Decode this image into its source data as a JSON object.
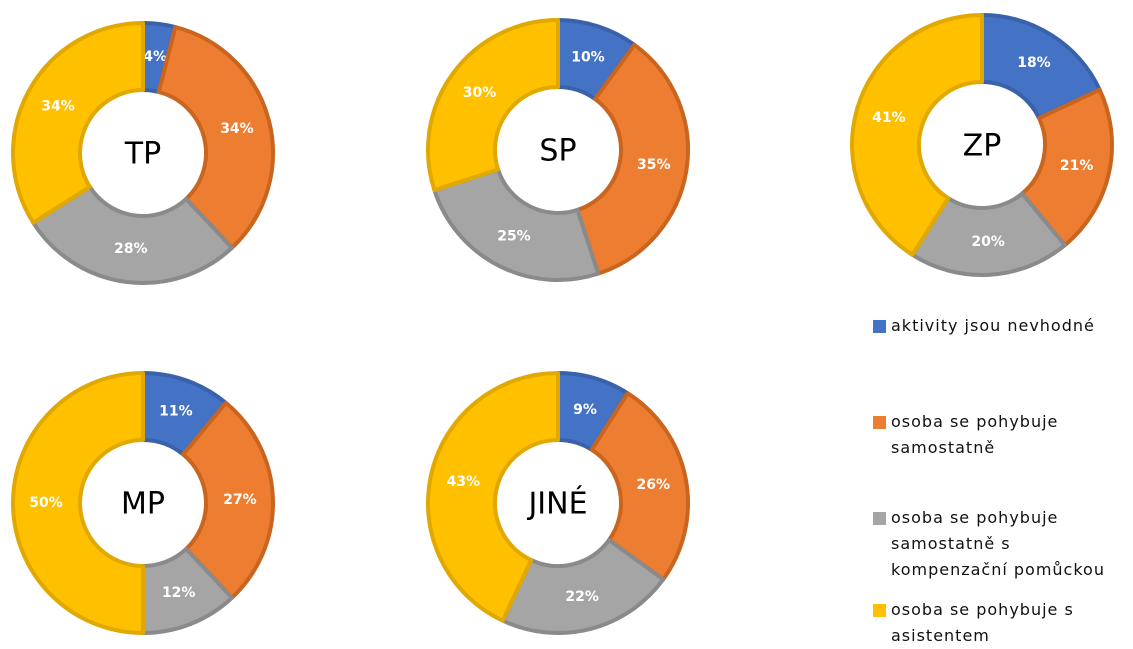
{
  "chart_data": [
    {
      "type": "pie",
      "title": "TP",
      "values": [
        4,
        34,
        28,
        34
      ],
      "value_labels": [
        "4%",
        "34%",
        "28%",
        "34%"
      ]
    },
    {
      "type": "pie",
      "title": "SP",
      "values": [
        10,
        35,
        25,
        30
      ],
      "value_labels": [
        "10%",
        "35%",
        "25%",
        "30%"
      ]
    },
    {
      "type": "pie",
      "title": "ZP",
      "values": [
        18,
        21,
        20,
        41
      ],
      "value_labels": [
        "18%",
        "21%",
        "20%",
        "41%"
      ]
    },
    {
      "type": "pie",
      "title": "MP",
      "values": [
        11,
        27,
        12,
        50
      ],
      "value_labels": [
        "11%",
        "27%",
        "12%",
        "50%"
      ]
    },
    {
      "type": "pie",
      "title": "JINÉ",
      "values": [
        9,
        26,
        22,
        43
      ],
      "value_labels": [
        "9%",
        "26%",
        "22%",
        "43%"
      ]
    }
  ],
  "legend": [
    {
      "name": "aktivity jsou nevhodné",
      "color": "#4472c4"
    },
    {
      "name": "osoba se pohybuje samostatně",
      "color": "#ed7d31"
    },
    {
      "name": "osoba se pohybuje samostatně s kompenzační pomůckou",
      "color": "#a5a5a5"
    },
    {
      "name": "osoba se pohybuje s asistentem",
      "color": "#ffc000"
    }
  ]
}
